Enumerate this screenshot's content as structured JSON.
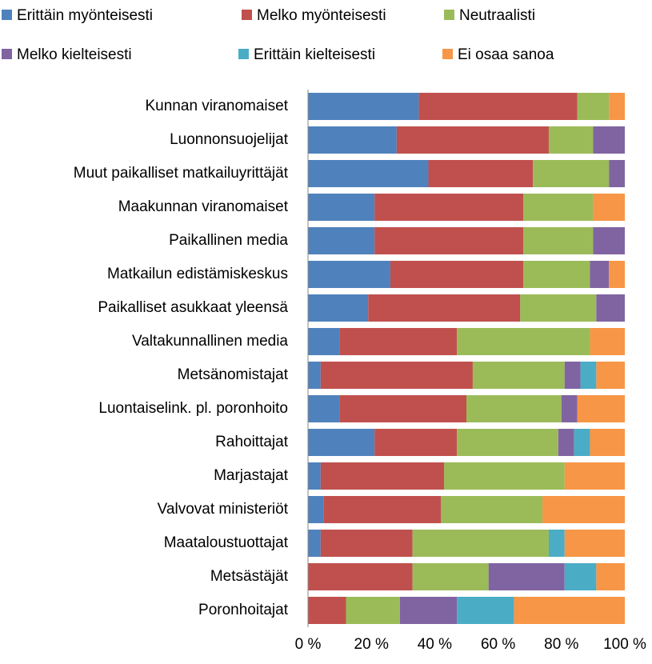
{
  "chart_data": {
    "type": "stacked-bar-horizontal",
    "categories": [
      "Kunnan viranomaiset",
      "Luonnonsuojelijat",
      "Muut paikalliset matkailuyrittäjät",
      "Maakunnan viranomaiset",
      "Paikallinen media",
      "Matkailun edistämiskeskus",
      "Paikalliset asukkaat yleensä",
      "Valtakunnallinen media",
      "Metsänomistajat",
      "Luontaiselink. pl. poronhoito",
      "Rahoittajat",
      "Marjastajat",
      "Valvovat ministeriöt",
      "Maataloustuottajat",
      "Metsästäjät",
      "Poronhoitajat"
    ],
    "series": [
      {
        "name": "Erittäin myönteisesti",
        "color": "#4F81BD",
        "values": [
          35,
          28,
          38,
          21,
          21,
          26,
          19,
          10,
          4,
          10,
          21,
          4,
          5,
          4,
          0,
          0
        ]
      },
      {
        "name": "Melko myönteisesti",
        "color": "#C0504D",
        "values": [
          50,
          48,
          33,
          47,
          47,
          42,
          48,
          37,
          48,
          40,
          26,
          39,
          37,
          29,
          33,
          12
        ]
      },
      {
        "name": "Neutraalisti",
        "color": "#9BBB59",
        "values": [
          10,
          14,
          24,
          22,
          22,
          21,
          24,
          42,
          29,
          30,
          32,
          38,
          32,
          43,
          24,
          17
        ]
      },
      {
        "name": "Melko kielteisesti",
        "color": "#8064A2",
        "values": [
          0,
          10,
          5,
          0,
          10,
          6,
          9,
          0,
          5,
          5,
          5,
          0,
          0,
          0,
          24,
          18
        ]
      },
      {
        "name": "Erittäin kielteisesti",
        "color": "#4BACC6",
        "values": [
          0,
          0,
          0,
          0,
          0,
          0,
          0,
          0,
          5,
          0,
          5,
          0,
          0,
          5,
          10,
          18
        ]
      },
      {
        "name": "Ei osaa sanoa",
        "color": "#F79646",
        "values": [
          5,
          0,
          0,
          10,
          0,
          5,
          0,
          11,
          9,
          15,
          11,
          19,
          26,
          19,
          9,
          35
        ]
      }
    ],
    "xlim": [
      0,
      100
    ],
    "xticks": [
      {
        "value": 0,
        "label": "0 %"
      },
      {
        "value": 20,
        "label": "20 %"
      },
      {
        "value": 40,
        "label": "40 %"
      },
      {
        "value": 60,
        "label": "60 %"
      },
      {
        "value": 80,
        "label": "80 %"
      },
      {
        "value": 100,
        "label": "100 %"
      }
    ],
    "legend": "top"
  }
}
